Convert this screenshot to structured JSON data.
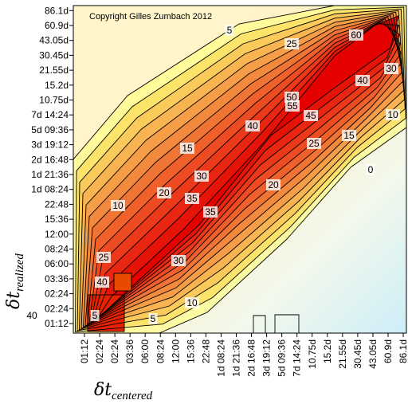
{
  "chart_data": {
    "type": "heatmap",
    "title": "",
    "copyright": "Copyright Gilles Zumbach 2012",
    "xlabel": {
      "symbol": "δt",
      "subscript": "centered"
    },
    "ylabel": {
      "symbol": "δt",
      "subscript": "realized"
    },
    "x_ticks": [
      "01:12",
      "02:24",
      "02:24",
      "03:36",
      "06:00",
      "08:24",
      "12:00",
      "15:36",
      "22:48",
      "1d 08:24",
      "1d 21:36",
      "2d 16:48",
      "3d 19:12",
      "5d 09:36",
      "7d 14:24",
      "10.75d",
      "15.2d",
      "21.55d",
      "30.45d",
      "43.05d",
      "60.9d",
      "86.1d"
    ],
    "y_ticks": [
      "01:12",
      "02:24",
      "02:24",
      "03:36",
      "06:00",
      "08:24",
      "12:00",
      "15:36",
      "22:48",
      "1d 08:24",
      "1d 21:36",
      "2d 16:48",
      "3d 19:12",
      "5d 09:36",
      "7d 14:24",
      "10.75d",
      "15.2d",
      "21.55d",
      "30.45d",
      "43.05d",
      "60.9d",
      "86.1d"
    ],
    "contour_levels": [
      0,
      5,
      10,
      15,
      20,
      25,
      30,
      35,
      40,
      45,
      50,
      55,
      60
    ],
    "contour_labels": [
      "5",
      "25",
      "60",
      "40",
      "30",
      "50",
      "55",
      "45",
      "10",
      "15",
      "25",
      "15",
      "40",
      "0",
      "30",
      "20",
      "20",
      "35",
      "35",
      "10",
      "25",
      "30",
      "40",
      "40",
      "10",
      "5",
      "5"
    ],
    "colorscale": {
      "low": "#d6f0f8",
      "mid": "#ffe85a",
      "high": "#e40000"
    },
    "grid": false,
    "legend": "none"
  }
}
